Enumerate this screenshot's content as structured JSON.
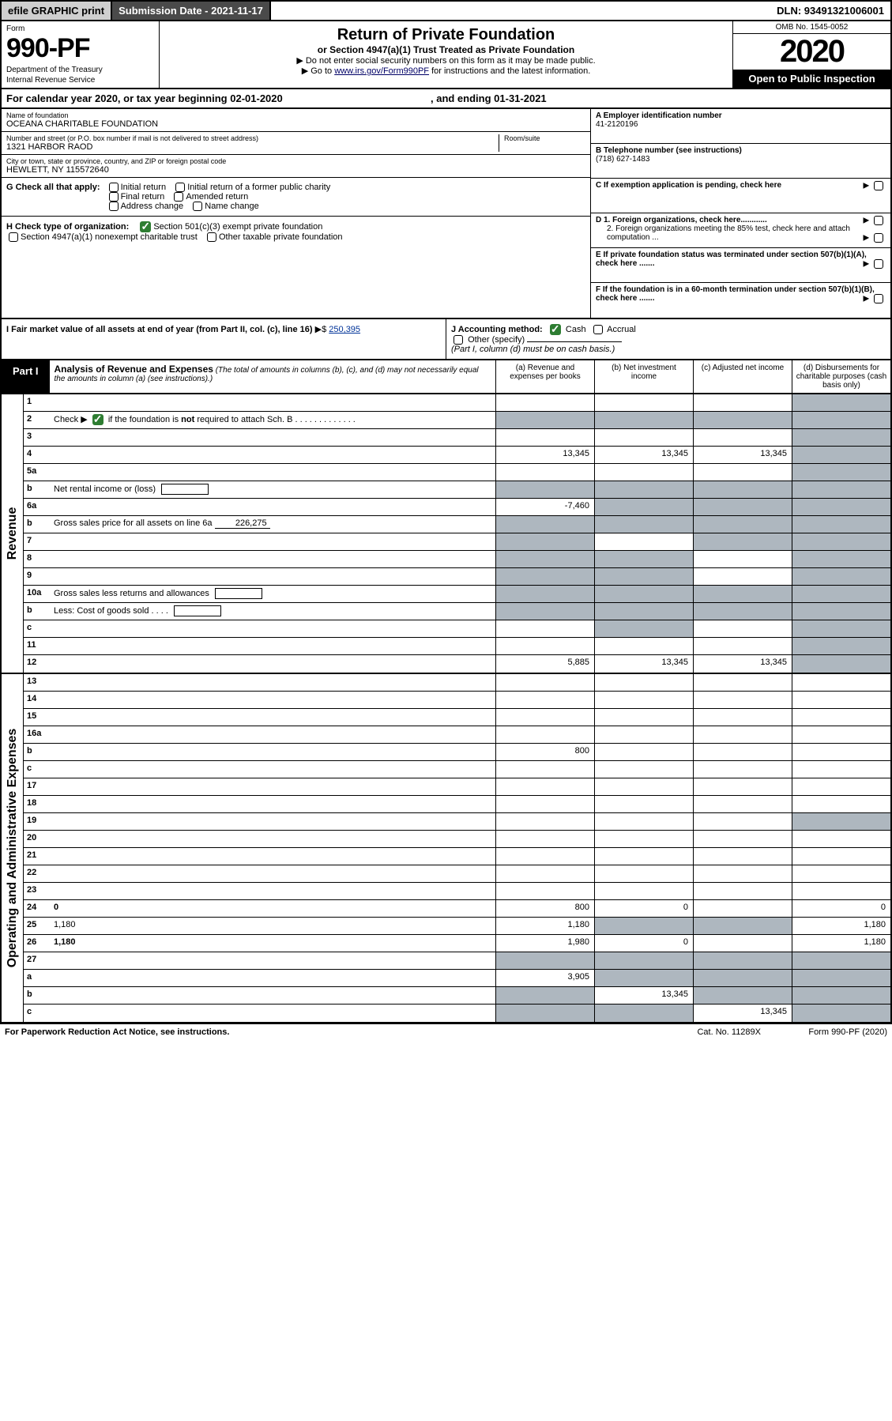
{
  "topbar": {
    "efile": "efile GRAPHIC print",
    "subdate": "Submission Date - 2021-11-17",
    "dln": "DLN: 93491321006001"
  },
  "header": {
    "form_label": "Form",
    "form_num": "990-PF",
    "dept1": "Department of the Treasury",
    "dept2": "Internal Revenue Service",
    "title": "Return of Private Foundation",
    "subtitle": "or Section 4947(a)(1) Trust Treated as Private Foundation",
    "note1": "▶ Do not enter social security numbers on this form as it may be made public.",
    "note2_pre": "▶ Go to ",
    "note2_link": "www.irs.gov/Form990PF",
    "note2_post": " for instructions and the latest information.",
    "omb": "OMB No. 1545-0052",
    "year": "2020",
    "open": "Open to Public Inspection"
  },
  "calyear": {
    "text_pre": "For calendar year 2020, or tax year beginning ",
    "begin": "02-01-2020",
    "mid": " , and ending ",
    "end": "01-31-2021"
  },
  "info": {
    "name_lbl": "Name of foundation",
    "name_val": "OCEANA CHARITABLE FOUNDATION",
    "addr_lbl": "Number and street (or P.O. box number if mail is not delivered to street address)",
    "addr_val": "1321 HARBOR RAOD",
    "room_lbl": "Room/suite",
    "city_lbl": "City or town, state or province, country, and ZIP or foreign postal code",
    "city_val": "HEWLETT, NY  115572640",
    "a_lbl": "A Employer identification number",
    "a_val": "41-2120196",
    "b_lbl": "B Telephone number (see instructions)",
    "b_val": "(718) 627-1483",
    "c_lbl": "C If exemption application is pending, check here",
    "d1": "D 1. Foreign organizations, check here............",
    "d2": "2. Foreign organizations meeting the 85% test, check here and attach computation ...",
    "e_lbl": "E  If private foundation status was terminated under section 507(b)(1)(A), check here .......",
    "f_lbl": "F  If the foundation is in a 60-month termination under section 507(b)(1)(B), check here .......",
    "g_lead": "G Check all that apply:",
    "g_opts": [
      "Initial return",
      "Initial return of a former public charity",
      "Final return",
      "Amended return",
      "Address change",
      "Name change"
    ],
    "h_lead": "H Check type of organization:",
    "h_opt1": "Section 501(c)(3) exempt private foundation",
    "h_opt2": "Section 4947(a)(1) nonexempt charitable trust",
    "h_opt3": "Other taxable private foundation",
    "i_lbl": "I Fair market value of all assets at end of year (from Part II, col. (c), line 16)",
    "i_val": "250,395",
    "j_lbl": "J Accounting method:",
    "j_cash": "Cash",
    "j_accr": "Accrual",
    "j_other": "Other (specify)",
    "j_note": "(Part I, column (d) must be on cash basis.)"
  },
  "part1": {
    "label": "Part I",
    "title": "Analysis of Revenue and Expenses",
    "title_note": "(The total of amounts in columns (b), (c), and (d) may not necessarily equal the amounts in column (a) (see instructions).)",
    "cols": {
      "a": "(a)  Revenue and expenses per books",
      "b": "(b)  Net investment income",
      "c": "(c)  Adjusted net income",
      "d": "(d)  Disbursements for charitable purposes (cash basis only)"
    }
  },
  "side1": "Revenue",
  "side2": "Operating and Administrative Expenses",
  "rows": [
    {
      "n": "1",
      "d": "",
      "a": "",
      "b": "",
      "c": "",
      "d_shade": true
    },
    {
      "n": "2",
      "d": "Check ▶ ✔ if the foundation is not required to attach Sch. B",
      "no_cells": true
    },
    {
      "n": "3",
      "d": "",
      "a": "",
      "b": "",
      "c": "",
      "d_shade": true
    },
    {
      "n": "4",
      "d": "",
      "a": "13,345",
      "b": "13,345",
      "c": "13,345",
      "d_shade": true
    },
    {
      "n": "5a",
      "d": "",
      "a": "",
      "b": "",
      "c": "",
      "d_shade": true
    },
    {
      "n": "b",
      "d": "Net rental income or (loss)",
      "inline_box": true,
      "d_shade_all": true
    },
    {
      "n": "6a",
      "d": "",
      "a": "-7,460",
      "b": "",
      "c": "",
      "b_shade": true,
      "c_shade": true,
      "d_shade": true
    },
    {
      "n": "b",
      "d": "Gross sales price for all assets on line 6a",
      "inline": "226,275",
      "d_shade_all": true
    },
    {
      "n": "7",
      "d": "",
      "a": "",
      "b": "",
      "c": "",
      "a_shade": true,
      "c_shade": true,
      "d_shade": true
    },
    {
      "n": "8",
      "d": "",
      "a": "",
      "b": "",
      "c": "",
      "a_shade": true,
      "b_shade": true,
      "d_shade": true
    },
    {
      "n": "9",
      "d": "",
      "a": "",
      "b": "",
      "c": "",
      "a_shade": true,
      "b_shade": true,
      "d_shade": true
    },
    {
      "n": "10a",
      "d": "Gross sales less returns and allowances",
      "inline_box": true,
      "d_shade_all": true
    },
    {
      "n": "b",
      "d": "Less: Cost of goods sold   .   .   .   .",
      "inline_box": true,
      "d_shade_all": true
    },
    {
      "n": "c",
      "d": "",
      "a": "",
      "b": "",
      "c": "",
      "b_shade": true,
      "d_shade": true
    },
    {
      "n": "11",
      "d": "",
      "a": "",
      "b": "",
      "c": "",
      "d_shade": true
    },
    {
      "n": "12",
      "d": "",
      "bold": true,
      "a": "5,885",
      "b": "13,345",
      "c": "13,345",
      "d_shade": true
    },
    {
      "n": "13",
      "d": "",
      "a": "",
      "b": "",
      "c": ""
    },
    {
      "n": "14",
      "d": "",
      "a": "",
      "b": "",
      "c": ""
    },
    {
      "n": "15",
      "d": "",
      "a": "",
      "b": "",
      "c": ""
    },
    {
      "n": "16a",
      "d": "",
      "a": "",
      "b": "",
      "c": ""
    },
    {
      "n": "b",
      "d": "",
      "a": "800",
      "b": "",
      "c": ""
    },
    {
      "n": "c",
      "d": "",
      "a": "",
      "b": "",
      "c": ""
    },
    {
      "n": "17",
      "d": "",
      "a": "",
      "b": "",
      "c": ""
    },
    {
      "n": "18",
      "d": "",
      "a": "",
      "b": "",
      "c": ""
    },
    {
      "n": "19",
      "d": "",
      "a": "",
      "b": "",
      "c": "",
      "d_shade": true
    },
    {
      "n": "20",
      "d": "",
      "a": "",
      "b": "",
      "c": ""
    },
    {
      "n": "21",
      "d": "",
      "a": "",
      "b": "",
      "c": ""
    },
    {
      "n": "22",
      "d": "",
      "a": "",
      "b": "",
      "c": ""
    },
    {
      "n": "23",
      "d": "",
      "a": "",
      "b": "",
      "c": ""
    },
    {
      "n": "24",
      "d": "0",
      "bold": true,
      "a": "800",
      "b": "0",
      "c": ""
    },
    {
      "n": "25",
      "d": "1,180",
      "a": "1,180",
      "b": "",
      "c": "",
      "b_shade": true,
      "c_shade": true
    },
    {
      "n": "26",
      "d": "1,180",
      "bold": true,
      "a": "1,980",
      "b": "0",
      "c": ""
    },
    {
      "n": "27",
      "d": "",
      "a": "",
      "b": "",
      "c": "",
      "a_shade": true,
      "b_shade": true,
      "c_shade": true,
      "d_shade": true
    },
    {
      "n": "a",
      "d": "",
      "bold": true,
      "a": "3,905",
      "b": "",
      "c": "",
      "b_shade": true,
      "c_shade": true,
      "d_shade": true
    },
    {
      "n": "b",
      "d": "",
      "bold": true,
      "a": "",
      "b": "13,345",
      "c": "",
      "a_shade": true,
      "c_shade": true,
      "d_shade": true
    },
    {
      "n": "c",
      "d": "",
      "bold": true,
      "a": "",
      "b": "",
      "c": "13,345",
      "a_shade": true,
      "b_shade": true,
      "d_shade": true
    }
  ],
  "footer": {
    "left": "For Paperwork Reduction Act Notice, see instructions.",
    "mid": "Cat. No. 11289X",
    "right": "Form 990-PF (2020)"
  }
}
